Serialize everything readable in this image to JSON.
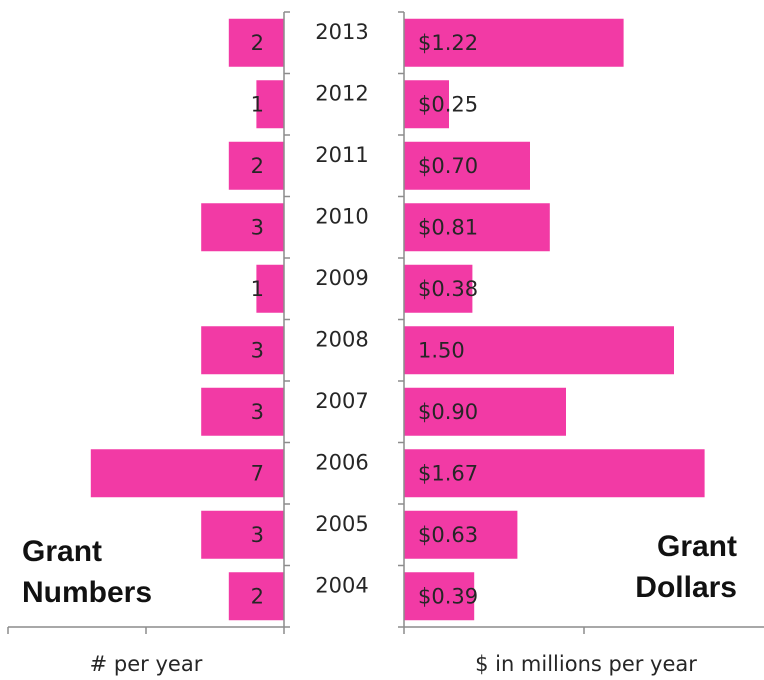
{
  "chart_data": [
    {
      "type": "bar",
      "orientation": "horizontal",
      "direction": "right-to-left",
      "title": "Grant Numbers",
      "xlabel": "# per year",
      "categories": [
        "2013",
        "2012",
        "2011",
        "2010",
        "2009",
        "2008",
        "2007",
        "2006",
        "2005",
        "2004"
      ],
      "values": [
        2,
        1,
        2,
        3,
        1,
        3,
        3,
        7,
        3,
        2
      ],
      "data_labels": [
        "2",
        "1",
        "2",
        "3",
        "1",
        "3",
        "3",
        "7",
        "3",
        "2"
      ],
      "xlim": [
        0,
        10
      ],
      "bar_color": "#f23aa5"
    },
    {
      "type": "bar",
      "orientation": "horizontal",
      "direction": "left-to-right",
      "title": "Grant Dollars",
      "xlabel": "$ in millions per year",
      "categories": [
        "2013",
        "2012",
        "2011",
        "2010",
        "2009",
        "2008",
        "2007",
        "2006",
        "2005",
        "2004"
      ],
      "values": [
        1.22,
        0.25,
        0.7,
        0.81,
        0.38,
        1.5,
        0.9,
        1.67,
        0.63,
        0.39
      ],
      "data_labels": [
        "$1.22",
        "$0.25",
        "$0.70",
        "$0.81",
        "$0.38",
        "1.50",
        "$0.90",
        "$1.67",
        "$0.63",
        "$0.39"
      ],
      "xlim": [
        0,
        2
      ],
      "bar_color": "#f23aa5"
    }
  ],
  "titles": {
    "left_line1": "Grant",
    "left_line2": "Numbers",
    "right_line1": "Grant",
    "right_line2": "Dollars"
  },
  "axis_titles": {
    "left": "# per year",
    "right": "$ in millions per year"
  },
  "colors": {
    "bar": "#f23aa5",
    "axis": "#8c8c8c",
    "text": "#262626"
  }
}
